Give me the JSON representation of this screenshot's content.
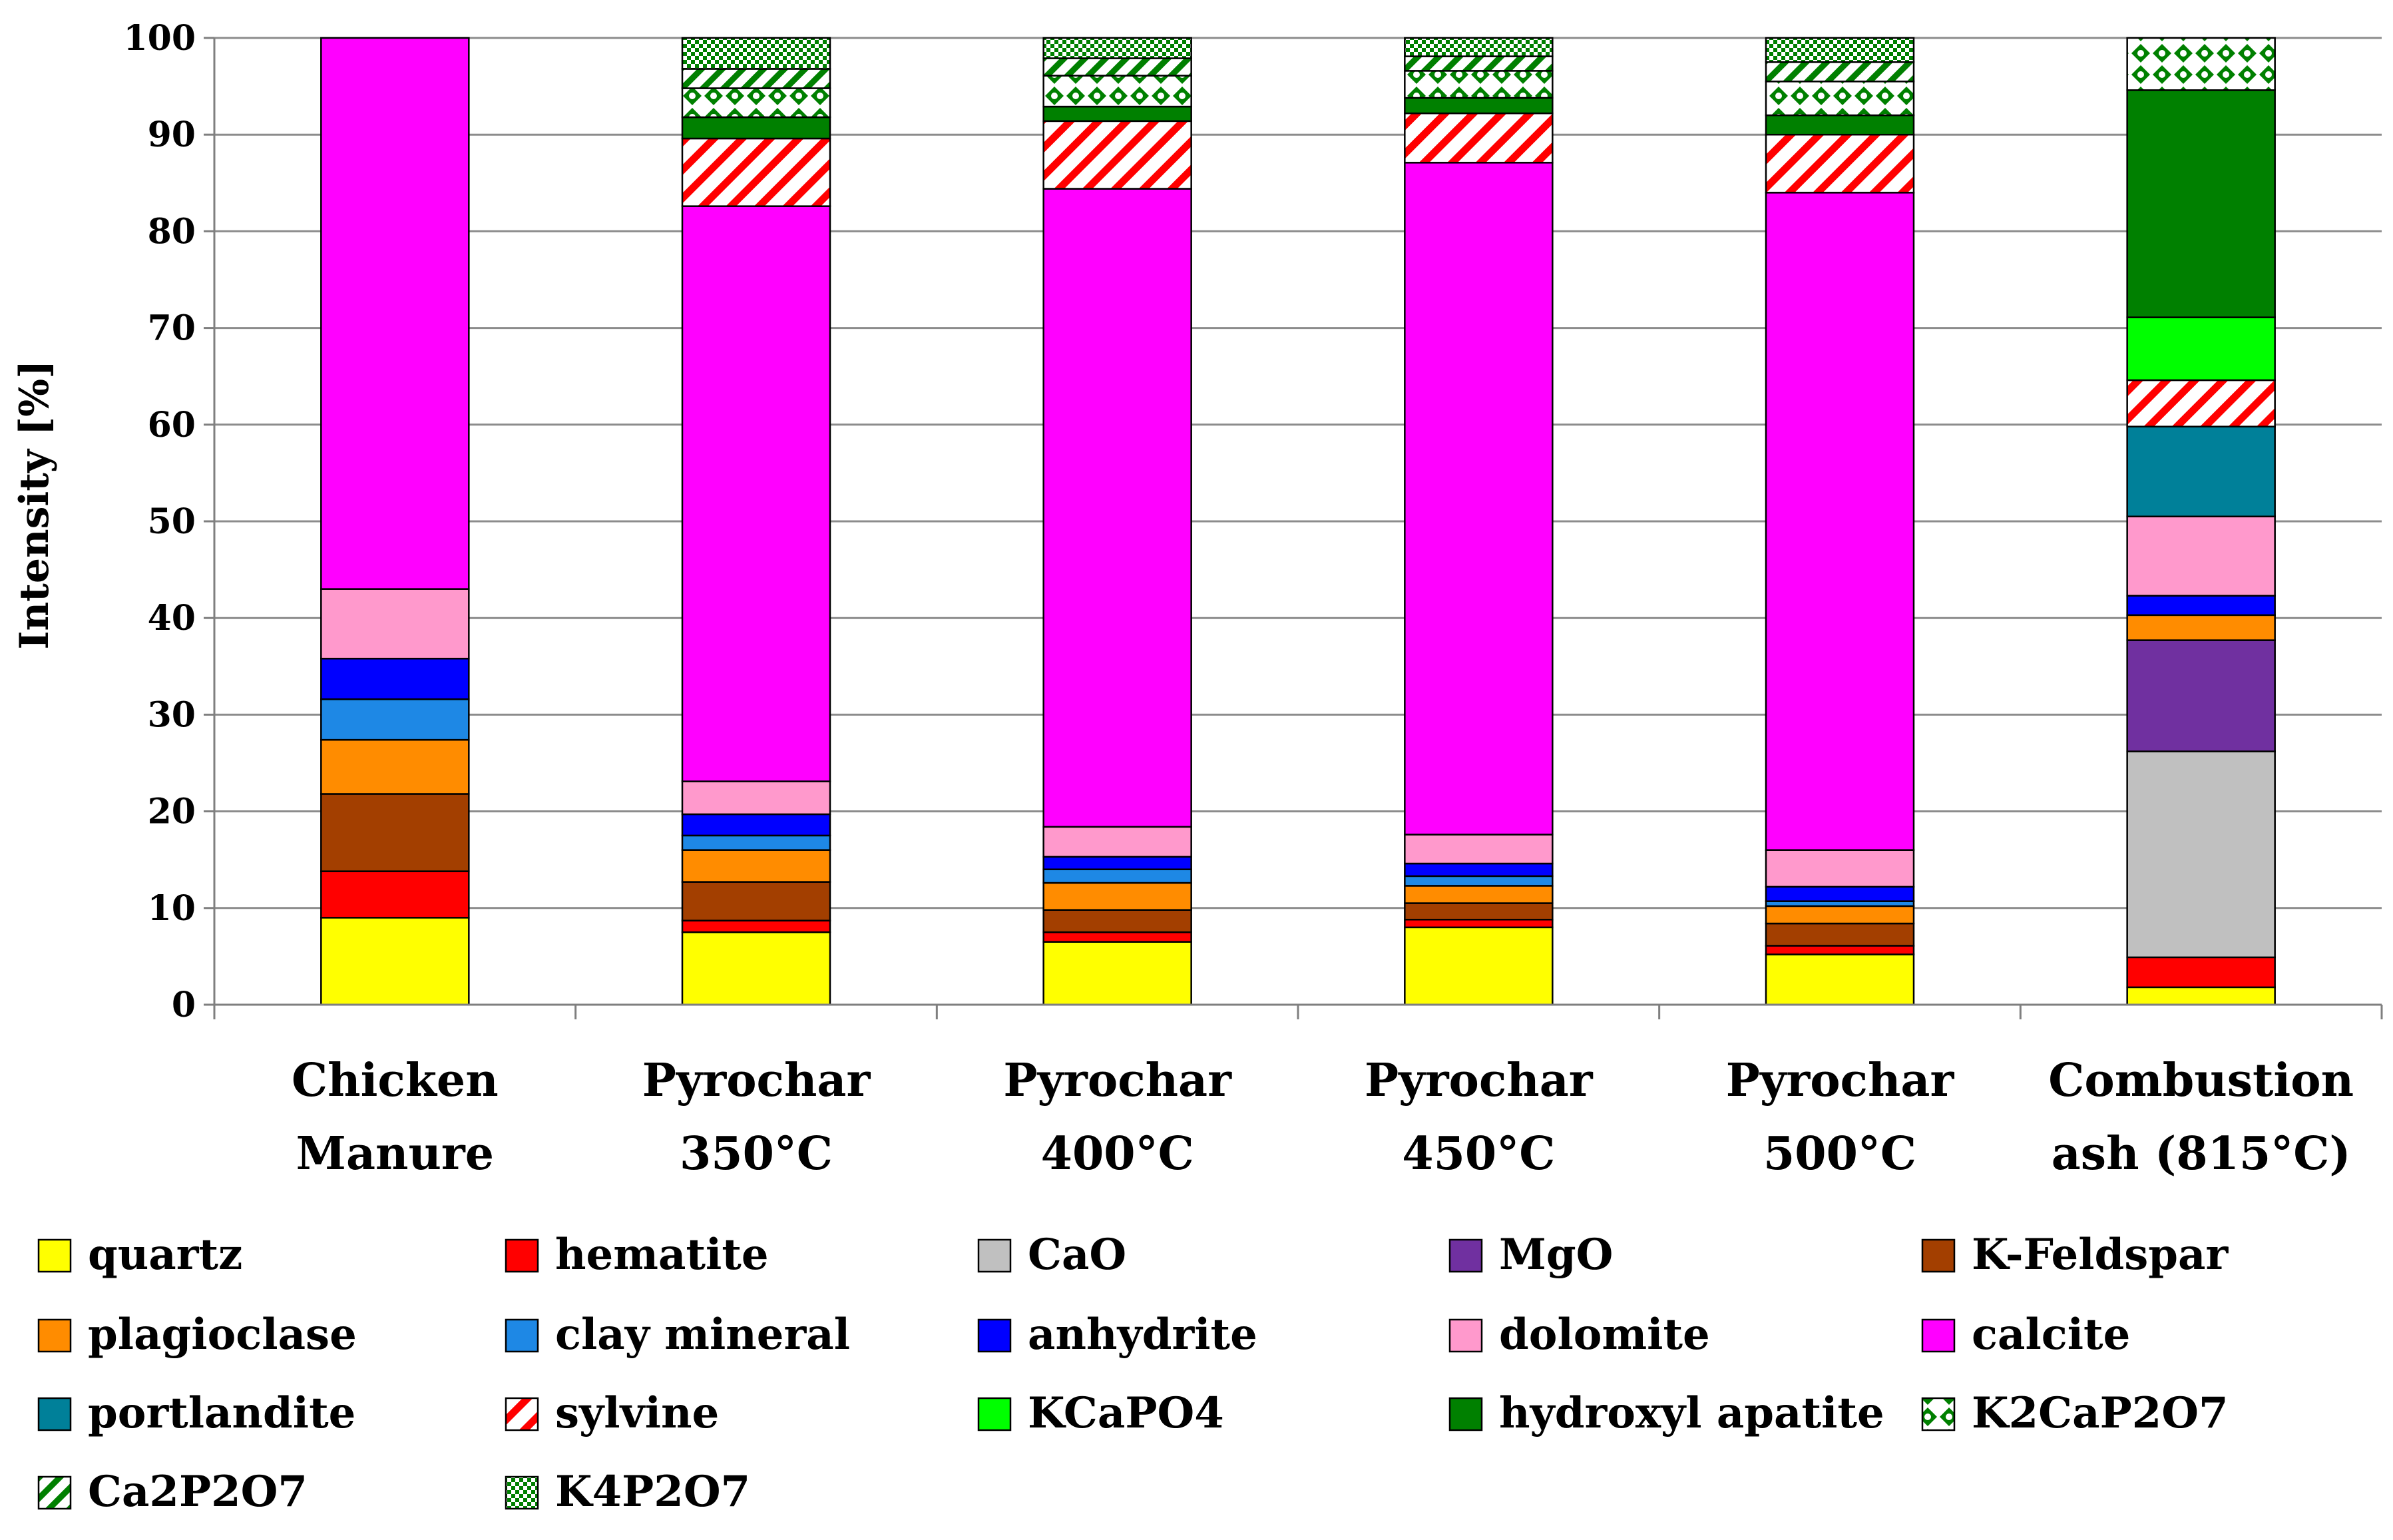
{
  "chart_data": {
    "type": "bar",
    "stacked": true,
    "title": "",
    "xlabel": "",
    "ylabel": "Intensity [%]",
    "ylim": [
      0,
      100
    ],
    "yticks": [
      "0",
      "10",
      "20",
      "30",
      "40",
      "50",
      "60",
      "70",
      "80",
      "90",
      "100"
    ],
    "grid": true,
    "legend_position": "bottom",
    "categories": [
      [
        "Chicken",
        "Manure"
      ],
      [
        "Pyrochar",
        "350°C"
      ],
      [
        "Pyrochar",
        "400°C"
      ],
      [
        "Pyrochar",
        "450°C"
      ],
      [
        "Pyrochar",
        "500°C"
      ],
      [
        "Combustion",
        "ash (815°C)"
      ]
    ],
    "series": [
      {
        "name": "quartz",
        "color": "#ffff00",
        "pattern": "solid",
        "values": [
          9.0,
          7.5,
          6.5,
          8.0,
          5.2,
          1.8
        ]
      },
      {
        "name": "hematite",
        "color": "#ff0000",
        "pattern": "solid",
        "values": [
          4.8,
          1.2,
          1.0,
          0.8,
          0.9,
          3.1
        ]
      },
      {
        "name": "CaO",
        "color": "#c0c0c0",
        "pattern": "solid",
        "values": [
          0,
          0,
          0,
          0,
          0,
          21.3
        ]
      },
      {
        "name": "MgO",
        "color": "#7030a0",
        "pattern": "solid",
        "values": [
          0,
          0,
          0,
          0,
          0,
          11.5
        ]
      },
      {
        "name": "K-Feldspar",
        "color": "#a33f00",
        "pattern": "solid",
        "values": [
          8.0,
          4.0,
          2.3,
          1.7,
          2.3,
          0
        ]
      },
      {
        "name": "plagioclase",
        "color": "#ff8c00",
        "pattern": "solid",
        "values": [
          5.6,
          3.3,
          2.8,
          1.8,
          1.8,
          2.6
        ]
      },
      {
        "name": "clay mineral",
        "color": "#1e88e5",
        "pattern": "solid",
        "values": [
          4.2,
          1.5,
          1.4,
          1.0,
          0.5,
          0
        ]
      },
      {
        "name": "anhydrite",
        "color": "#0000ff",
        "pattern": "solid",
        "values": [
          4.2,
          2.2,
          1.3,
          1.3,
          1.5,
          2.0
        ]
      },
      {
        "name": "dolomite",
        "color": "#ff99cc",
        "pattern": "solid",
        "values": [
          7.2,
          3.4,
          3.1,
          3.0,
          3.8,
          8.2
        ]
      },
      {
        "name": "calcite",
        "color": "#ff00ff",
        "pattern": "solid",
        "values": [
          57.0,
          59.5,
          66.0,
          69.5,
          68.0,
          0
        ]
      },
      {
        "name": "portlandite",
        "color": "#008099",
        "pattern": "solid",
        "values": [
          0,
          0,
          0,
          0,
          0,
          9.3
        ]
      },
      {
        "name": "sylvine",
        "color": "#ff0000",
        "pattern": "diagonal-red",
        "values": [
          0,
          7.0,
          7.0,
          5.1,
          6.0,
          4.8
        ]
      },
      {
        "name": "KCaPO4",
        "color": "#00ff00",
        "pattern": "solid",
        "values": [
          0,
          0,
          0,
          0,
          0,
          6.5
        ]
      },
      {
        "name": "hydroxyl apatite",
        "color": "#008000",
        "pattern": "solid",
        "values": [
          0,
          2.2,
          1.5,
          1.6,
          2.0,
          23.5
        ]
      },
      {
        "name": "K2CaP2O7",
        "color": "#008000",
        "pattern": "diamond-green",
        "values": [
          0,
          3.0,
          3.2,
          2.8,
          3.5,
          5.4
        ]
      },
      {
        "name": "Ca2P2O7",
        "color": "#008000",
        "pattern": "diagonal-green",
        "values": [
          0,
          2.0,
          1.8,
          1.5,
          2.0,
          0
        ]
      },
      {
        "name": "K4P2O7",
        "color": "#008000",
        "pattern": "checker-green",
        "values": [
          0,
          3.2,
          2.1,
          1.9,
          2.5,
          0
        ]
      }
    ]
  }
}
